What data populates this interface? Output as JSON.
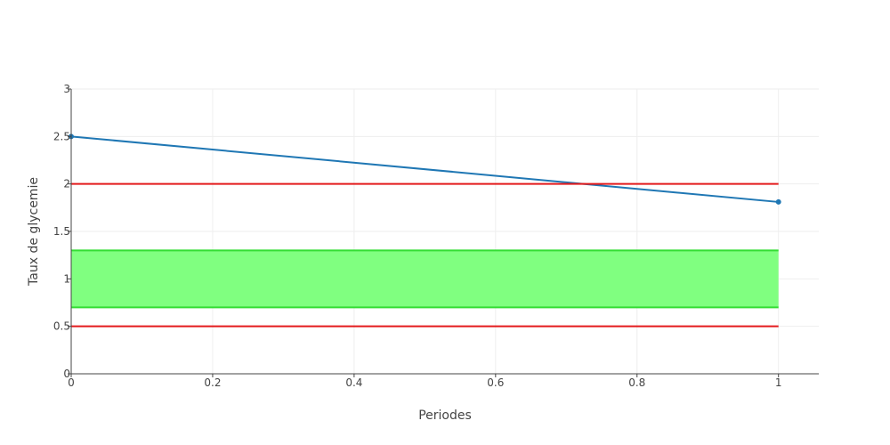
{
  "chart_data": {
    "type": "line",
    "title": "",
    "xlabel": "Periodes",
    "ylabel": "Taux de glycemie",
    "xlim": [
      0,
      1.057
    ],
    "ylim": [
      0,
      3
    ],
    "x_ticks": [
      0,
      0.2,
      0.4,
      0.6,
      0.8,
      1
    ],
    "x_tick_labels": [
      "0",
      "0.2",
      "0.4",
      "0.6",
      "0.8",
      "1"
    ],
    "y_ticks": [
      0,
      0.5,
      1,
      1.5,
      2,
      2.5,
      3
    ],
    "y_tick_labels": [
      "0",
      "0.5",
      "1",
      "1.5",
      "2",
      "2.5",
      "3"
    ],
    "grid": true,
    "legend": "none",
    "series": [
      {
        "x": [
          0,
          1
        ],
        "y": [
          2.5,
          1.81
        ],
        "color": "#1f77b4",
        "markers": true
      },
      {
        "x": [
          0,
          1
        ],
        "y": [
          2,
          2
        ],
        "color": "#e31a1c",
        "markers": false
      },
      {
        "x": [
          0,
          1
        ],
        "y": [
          0.5,
          0.5
        ],
        "color": "#e31a1c",
        "markers": false
      }
    ],
    "band": {
      "x": [
        0,
        1
      ],
      "y_low": 0.7,
      "y_high": 1.3,
      "fill": "#80ff80",
      "line": "#33dd33"
    }
  }
}
